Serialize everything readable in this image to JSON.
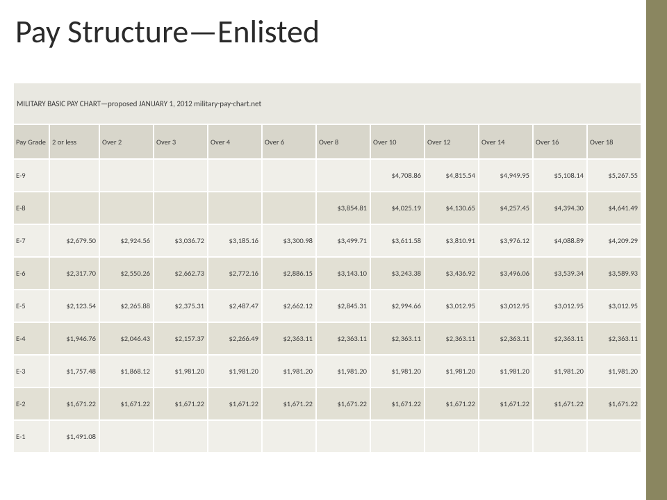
{
  "title": "Pay Structure—Enlisted",
  "accent_color": "#8a8660",
  "table": {
    "caption": "MILITARY BASIC PAY CHART—proposed JANUARY 1, 2012 military-pay-chart.net",
    "columns": [
      "Pay Grade",
      "2 or less",
      "Over 2",
      "Over 3",
      "Over 4",
      "Over 6",
      "Over 8",
      "Over 10",
      "Over 12",
      "Over 14",
      "Over 16",
      "Over 18"
    ],
    "column_widths": [
      "52px",
      "72px",
      "78px",
      "78px",
      "78px",
      "78px",
      "78px",
      "78px",
      "78px",
      "78px",
      "78px",
      "78px"
    ],
    "header_bg": "#d8d6cb",
    "caption_bg": "#e9e8e1",
    "row_bg_odd": "#f0efe9",
    "row_bg_even": "#e2e0d4",
    "border_color": "#ffffff",
    "font_size_pt": 8,
    "rows": [
      {
        "grade": "E-9",
        "cells": [
          "",
          "",
          "",
          "",
          "",
          "",
          "$4,708.86",
          "$4,815.54",
          "$4,949.95",
          "$5,108.14",
          "$5,267.55"
        ]
      },
      {
        "grade": "E-8",
        "cells": [
          "",
          "",
          "",
          "",
          "",
          "$3,854.81",
          "$4,025.19",
          "$4,130.65",
          "$4,257.45",
          "$4,394.30",
          "$4,641.49"
        ]
      },
      {
        "grade": "E-7",
        "cells": [
          "$2,679.50",
          "$2,924.56",
          "$3,036.72",
          "$3,185.16",
          "$3,300.98",
          "$3,499.71",
          "$3,611.58",
          "$3,810.91",
          "$3,976.12",
          "$4,088.89",
          "$4,209.29"
        ]
      },
      {
        "grade": "E-6",
        "cells": [
          "$2,317.70",
          "$2,550.26",
          "$2,662.73",
          "$2,772.16",
          "$2,886.15",
          "$3,143.10",
          "$3,243.38",
          "$3,436.92",
          "$3,496.06",
          "$3,539.34",
          "$3,589.93"
        ]
      },
      {
        "grade": "E-5",
        "cells": [
          "$2,123.54",
          "$2,265.88",
          "$2,375.31",
          "$2,487.47",
          "$2,662.12",
          "$2,845.31",
          "$2,994.66",
          "$3,012.95",
          "$3,012.95",
          "$3,012.95",
          "$3,012.95"
        ]
      },
      {
        "grade": "E-4",
        "cells": [
          "$1,946.76",
          "$2,046.43",
          "$2,157.37",
          "$2,266.49",
          "$2,363.11",
          "$2,363.11",
          "$2,363.11",
          "$2,363.11",
          "$2,363.11",
          "$2,363.11",
          "$2,363.11"
        ]
      },
      {
        "grade": "E-3",
        "cells": [
          "$1,757.48",
          "$1,868.12",
          "$1,981.20",
          "$1,981.20",
          "$1,981.20",
          "$1,981.20",
          "$1,981.20",
          "$1,981.20",
          "$1,981.20",
          "$1,981.20",
          "$1,981.20"
        ]
      },
      {
        "grade": "E-2",
        "cells": [
          "$1,671.22",
          "$1,671.22",
          "$1,671.22",
          "$1,671.22",
          "$1,671.22",
          "$1,671.22",
          "$1,671.22",
          "$1,671.22",
          "$1,671.22",
          "$1,671.22",
          "$1,671.22"
        ]
      },
      {
        "grade": "E-1",
        "cells": [
          "$1,491.08",
          "",
          "",
          "",
          "",
          "",
          "",
          "",
          "",
          "",
          ""
        ]
      }
    ]
  }
}
